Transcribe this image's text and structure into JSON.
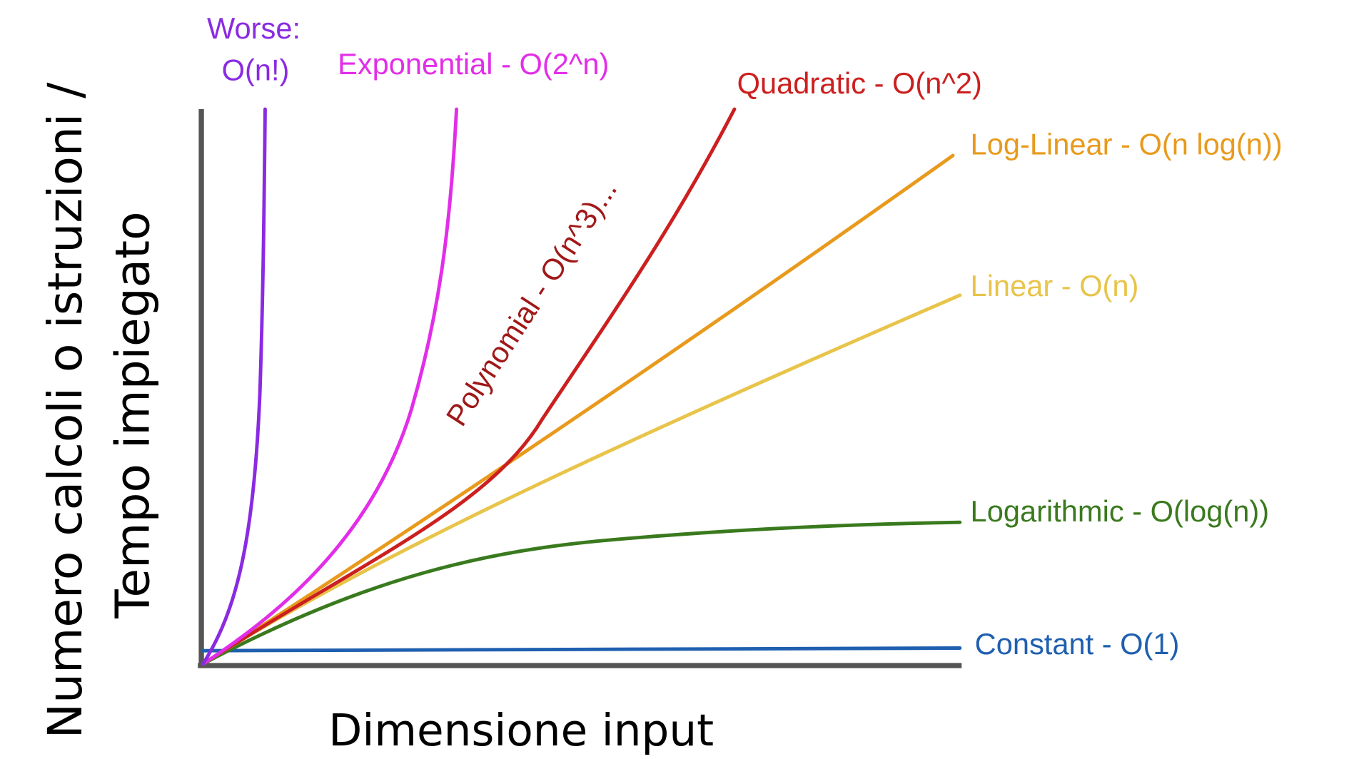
{
  "y_axis_label": [
    "Numero calcoli o istruzioni /",
    "Tempo impiegato"
  ],
  "x_axis_label": "Dimensione input",
  "annotation": {
    "text": "Polynomial - O(n^3)...",
    "color": "#a01818"
  },
  "curves": [
    {
      "label": "Worse:",
      "sublabel": "O(n!)",
      "color": "#8a2be2"
    },
    {
      "label": "Exponential - O(2^n)",
      "color": "#e22ee8"
    },
    {
      "label": "Quadratic - O(n^2)",
      "color": "#cc1f1f"
    },
    {
      "label": "Log-Linear - O(n log(n))",
      "color": "#e89a1c"
    },
    {
      "label": "Linear - O(n)",
      "color": "#e8c44a"
    },
    {
      "label": "Logarithmic - O(log(n))",
      "color": "#3a7a1e"
    },
    {
      "label": "Constant - O(1)",
      "color": "#1f5fb0"
    }
  ]
}
